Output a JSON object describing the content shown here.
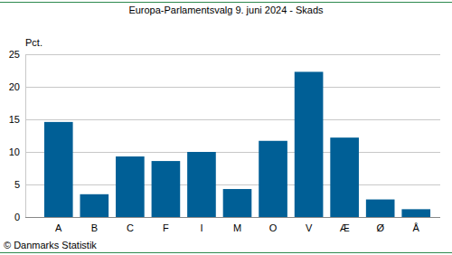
{
  "chart_data": {
    "type": "bar",
    "title": "Europa-Parlamentsvalg 9. juni 2024 - Skads",
    "y_label": "Pct.",
    "source": "© Danmarks Statistik",
    "categories": [
      "A",
      "B",
      "C",
      "F",
      "I",
      "M",
      "O",
      "V",
      "Æ",
      "Ø",
      "Å"
    ],
    "values": [
      14.6,
      3.5,
      9.3,
      8.6,
      10.0,
      4.3,
      11.7,
      22.3,
      12.2,
      2.7,
      1.2
    ],
    "color": "#005f96",
    "ylim": [
      0,
      25
    ],
    "yticks": [
      0,
      5,
      10,
      15,
      20,
      25
    ],
    "grid": true
  }
}
